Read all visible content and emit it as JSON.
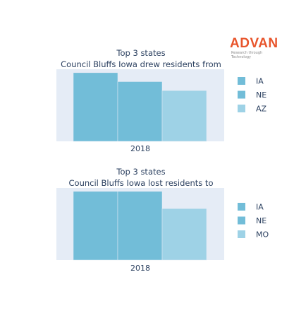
{
  "logo": {
    "brand": "ADVAN",
    "tagline": "Research through Technology"
  },
  "colors": {
    "plot_bg": "#e5ecf6",
    "bar_1": "#72bdd8",
    "bar_2": "#72bdd8",
    "bar_3": "#9ed2e6"
  },
  "chart_data": [
    {
      "type": "bar",
      "title": "Top 3 states",
      "subtitle": "Council Bluffs Iowa drew residents from",
      "categories": [
        "2018"
      ],
      "series": [
        {
          "name": "IA",
          "values": [
            100
          ]
        },
        {
          "name": "NE",
          "values": [
            87
          ]
        },
        {
          "name": "AZ",
          "values": [
            74
          ]
        }
      ],
      "ylim": [
        0,
        105
      ],
      "grid": false,
      "legend": "right"
    },
    {
      "type": "bar",
      "title": "Top 3 states",
      "subtitle": "Council Bluffs Iowa lost residents to",
      "categories": [
        "2018"
      ],
      "series": [
        {
          "name": "IA",
          "values": [
            100
          ]
        },
        {
          "name": "NE",
          "values": [
            100
          ]
        },
        {
          "name": "MO",
          "values": [
            75
          ]
        }
      ],
      "ylim": [
        0,
        105
      ],
      "grid": false,
      "legend": "right"
    }
  ]
}
